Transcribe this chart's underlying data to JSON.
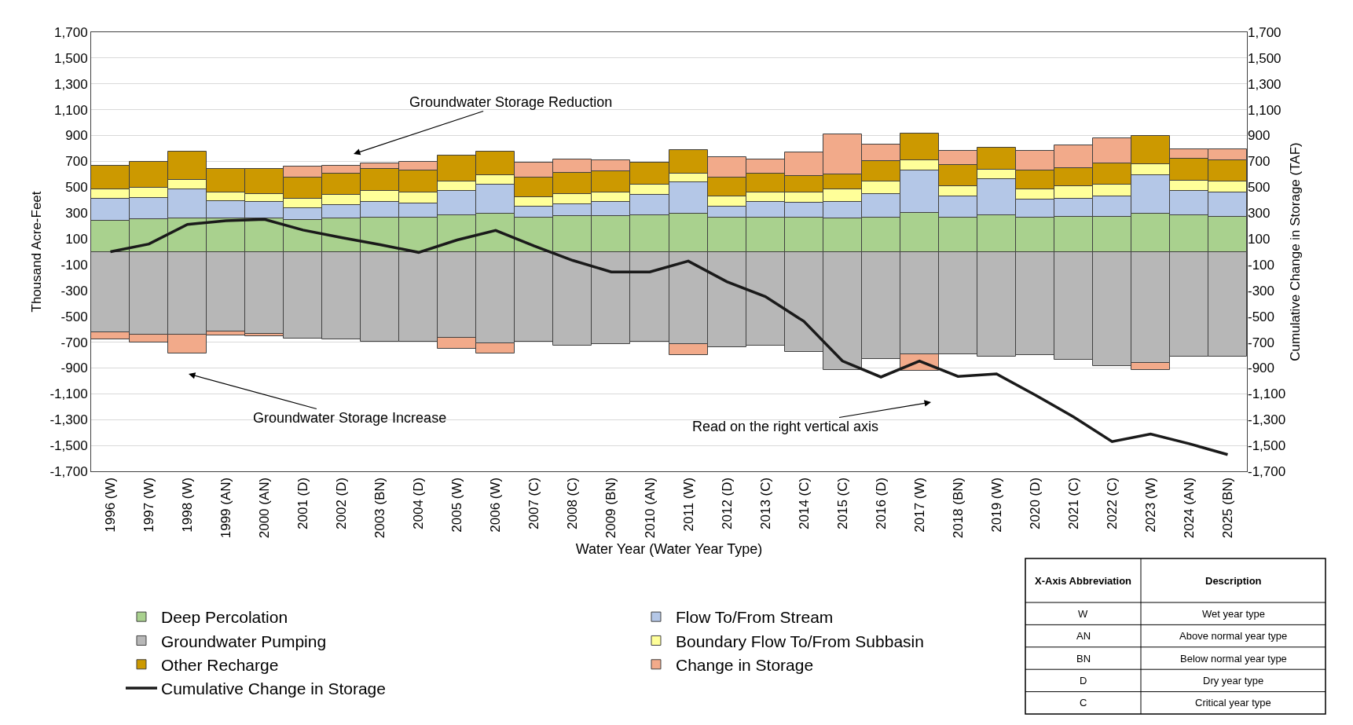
{
  "chart_data": {
    "type": "bar",
    "stacked": true,
    "categories": [
      "1996 (W)",
      "1997 (W)",
      "1998 (W)",
      "1999 (AN)",
      "2000 (AN)",
      "2001 (D)",
      "2002 (D)",
      "2003 (BN)",
      "2004 (D)",
      "2005 (W)",
      "2006 (W)",
      "2007 (C)",
      "2008 (C)",
      "2009 (BN)",
      "2010 (AN)",
      "2011 (W)",
      "2012 (D)",
      "2013 (C)",
      "2014 (C)",
      "2015 (C)",
      "2016 (D)",
      "2017 (W)",
      "2018 (BN)",
      "2019 (W)",
      "2020 (D)",
      "2021 (C)",
      "2022 (C)",
      "2023 (W)",
      "2024 (AN)",
      "2025 (BN)"
    ],
    "series": [
      {
        "name": "Deep Percolation",
        "color": "#a9d18e",
        "values": [
          240,
          251,
          259,
          259,
          259,
          247,
          261,
          266,
          266,
          285,
          292,
          266,
          275,
          275,
          285,
          292,
          263,
          263,
          263,
          259,
          266,
          304,
          266,
          280,
          263,
          268,
          268,
          298,
          282,
          273
        ]
      },
      {
        "name": "Flow To/From Stream",
        "color": "#b4c7e7",
        "values": [
          172,
          166,
          225,
          131,
          127,
          88,
          98,
          120,
          110,
          184,
          228,
          81,
          96,
          111,
          158,
          245,
          89,
          125,
          115,
          129,
          179,
          324,
          165,
          283,
          140,
          144,
          158,
          297,
          192,
          187
        ]
      },
      {
        "name": "Groundwater Pumping",
        "color": "#b7b7b7",
        "values": [
          -623,
          -640,
          -640,
          -618,
          -635,
          -671,
          -678,
          -695,
          -699,
          -666,
          -707,
          -695,
          -726,
          -714,
          -699,
          -714,
          -738,
          -726,
          -776,
          -915,
          -831,
          -795,
          -795,
          -810,
          -797,
          -837,
          -883,
          -860,
          -809,
          -809
        ]
      },
      {
        "name": "Boundary Flow To/From Subbasin",
        "color": "#ffff99",
        "values": [
          69,
          76,
          72,
          67,
          64,
          75,
          79,
          83,
          81,
          77,
          74,
          75,
          77,
          76,
          77,
          67,
          77,
          74,
          84,
          93,
          99,
          79,
          79,
          74,
          81,
          93,
          95,
          84,
          75,
          82
        ]
      },
      {
        "name": "Other Recharge",
        "color": "#cc9900",
        "values": [
          187,
          204,
          222,
          183,
          194,
          162,
          166,
          171,
          175,
          199,
          184,
          150,
          163,
          161,
          170,
          184,
          143,
          144,
          122,
          120,
          158,
          208,
          161,
          170,
          148,
          144,
          163,
          220,
          174,
          167
        ]
      },
      {
        "name": "Change in Storage",
        "color": "#f2aa8a",
        "values": [
          -55,
          -64,
          -150,
          -29,
          -19,
          89,
          64,
          45,
          65,
          -84,
          -83,
          118,
          105,
          86,
          null,
          -86,
          161,
          110,
          187,
          307,
          129,
          -127,
          112,
          null,
          151,
          176,
          192,
          -58,
          72,
          86
        ]
      },
      {
        "name": "Cumulative Change in Storage",
        "type": "line",
        "axis": "y2",
        "color": "#1a1a1a",
        "line_style": "solid",
        "values": [
          0,
          60,
          211,
          240,
          251,
          168,
          110,
          55,
          -5,
          91,
          165,
          45,
          -67,
          -156,
          -156,
          -72,
          -232,
          -347,
          -539,
          -846,
          -970,
          -846,
          -965,
          -946,
          -1108,
          -1279,
          -1470,
          -1412,
          -1486,
          -1571
        ]
      }
    ],
    "xlabel": "Water Year (Water Year Type)",
    "ylabel": "Thousand Acre-Feet",
    "y2label": "Cumulative Change in Storage (TAF)",
    "ylim": [
      -1700,
      1700
    ],
    "yticks": [
      {
        "value": -1700,
        "label": "-1,700"
      },
      {
        "value": -1500,
        "label": "-1,500"
      },
      {
        "value": -1300,
        "label": "-1,300"
      },
      {
        "value": -1100,
        "label": "-1,100"
      },
      -900,
      -700,
      -500,
      -300,
      -100,
      100,
      300,
      500,
      700,
      900,
      {
        "value": 1100,
        "label": "1,100"
      },
      {
        "value": 1300,
        "label": "1,300"
      },
      {
        "value": 1500,
        "label": "1,500"
      },
      {
        "value": 1700,
        "label": "1,700"
      }
    ],
    "y2lim": [
      -1700,
      1700
    ],
    "y2ticks": [
      {
        "value": -1700,
        "label": "-1,700"
      },
      {
        "value": -1500,
        "label": "-1,500"
      },
      {
        "value": -1300,
        "label": "-1,300"
      },
      {
        "value": -1100,
        "label": "-1,100"
      },
      -900,
      -700,
      -500,
      -300,
      -100,
      100,
      300,
      500,
      700,
      900,
      {
        "value": 1100,
        "label": "1,100"
      },
      {
        "value": 1300,
        "label": "1,300"
      },
      {
        "value": 1500,
        "label": "1,500"
      },
      {
        "value": 1700,
        "label": "1,700"
      }
    ],
    "grid": "y",
    "legend": "bottom left",
    "marker": "none",
    "annotations": [
      "Groundwater Storage Reduction",
      "Groundwater Storage Increase",
      "Read on the right vertical axis",
      "X-Axis Abbreviation",
      "Description",
      "W",
      "Wet year type",
      "AN",
      "Above normal year type",
      "BN",
      "Below normal year type",
      "D",
      "Dry year type",
      "C",
      "Critical year type"
    ]
  }
}
